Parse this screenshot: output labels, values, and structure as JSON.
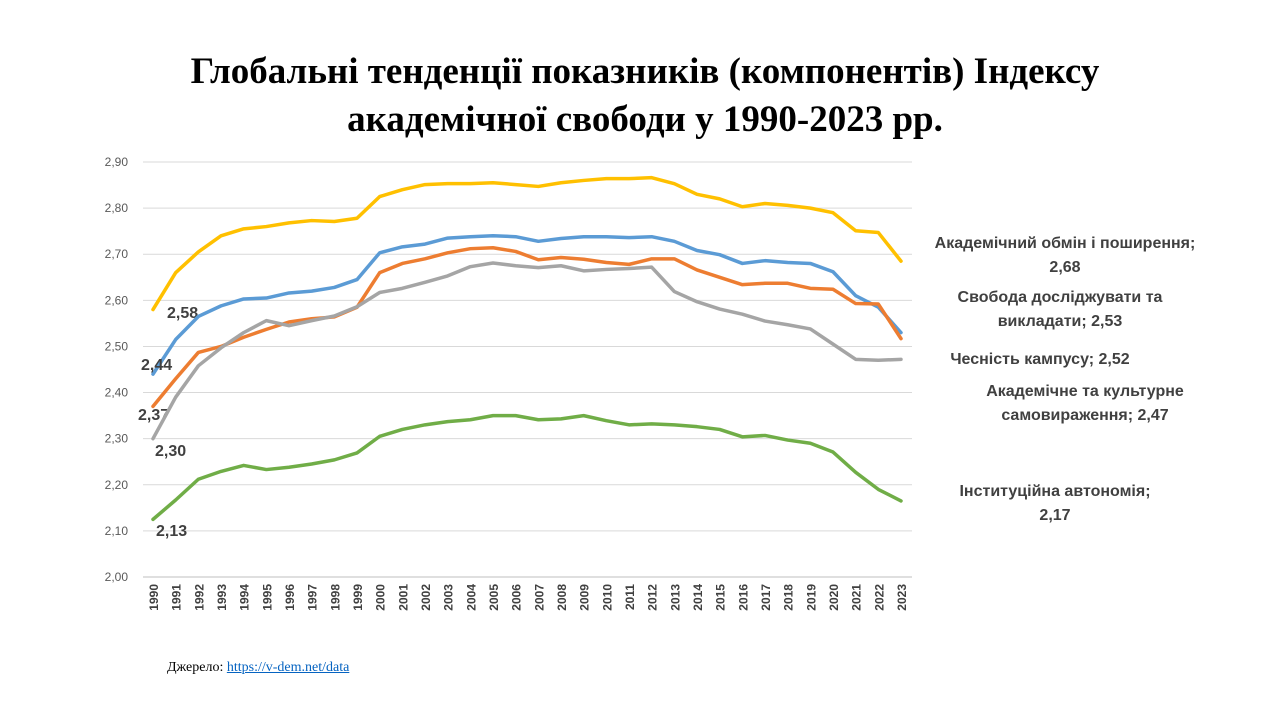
{
  "chart_data": {
    "type": "line",
    "title": "Глобальні тенденції показників (компонентів) Індексу академічної свободи  у 1990-2023 рр.",
    "title_lines": [
      "Глобальні тенденції показників (компонентів) Індексу",
      "академічної свободи  у 1990-2023 рр."
    ],
    "xlabel": "",
    "ylabel": "",
    "ylim": [
      2.0,
      2.9
    ],
    "yticks": [
      "2,00",
      "2,10",
      "2,20",
      "2,30",
      "2,40",
      "2,50",
      "2,60",
      "2,70",
      "2,80",
      "2,90"
    ],
    "grid": true,
    "x": [
      "1990",
      "1991",
      "1992",
      "1993",
      "1994",
      "1995",
      "1996",
      "1997",
      "1998",
      "1999",
      "2000",
      "2001",
      "2002",
      "2003",
      "2004",
      "2005",
      "2006",
      "2007",
      "2008",
      "2009",
      "2010",
      "2011",
      "2012",
      "2013",
      "2014",
      "2015",
      "2016",
      "2017",
      "2018",
      "2019",
      "2020",
      "2021",
      "2022",
      "2023"
    ],
    "series": [
      {
        "name": "Академічний обмін і поширення",
        "color": "#ffc000",
        "start_label": "2,58",
        "end_label": "Академічний обмін і поширення; 2,68",
        "values": [
          2.58,
          2.66,
          2.705,
          2.74,
          2.755,
          2.76,
          2.768,
          2.773,
          2.771,
          2.778,
          2.825,
          2.84,
          2.851,
          2.853,
          2.853,
          2.855,
          2.851,
          2.847,
          2.855,
          2.86,
          2.864,
          2.864,
          2.866,
          2.853,
          2.83,
          2.82,
          2.803,
          2.81,
          2.806,
          2.8,
          2.79,
          2.751,
          2.747,
          2.685
        ]
      },
      {
        "name": "Свобода досліджувати та викладати",
        "color": "#5b9bd5",
        "start_label": "2,44",
        "end_label": "Свобода досліджувати та викладати; 2,53",
        "values": [
          2.44,
          2.515,
          2.565,
          2.588,
          2.603,
          2.605,
          2.616,
          2.62,
          2.628,
          2.645,
          2.703,
          2.716,
          2.722,
          2.735,
          2.738,
          2.74,
          2.738,
          2.728,
          2.734,
          2.738,
          2.738,
          2.736,
          2.738,
          2.728,
          2.708,
          2.699,
          2.68,
          2.686,
          2.682,
          2.68,
          2.662,
          2.61,
          2.585,
          2.53
        ]
      },
      {
        "name": "Чесність кампусу",
        "color": "#ed7d31",
        "start_label": "2,37",
        "end_label": "Чесність кампусу; 2,52",
        "values": [
          2.37,
          2.43,
          2.487,
          2.5,
          2.52,
          2.537,
          2.553,
          2.56,
          2.564,
          2.585,
          2.66,
          2.68,
          2.69,
          2.703,
          2.712,
          2.714,
          2.706,
          2.688,
          2.693,
          2.689,
          2.682,
          2.678,
          2.69,
          2.69,
          2.666,
          2.65,
          2.634,
          2.637,
          2.637,
          2.626,
          2.624,
          2.593,
          2.592,
          2.517
        ]
      },
      {
        "name": "Академічне та культурне самовираження",
        "color": "#a5a5a5",
        "start_label": "2,30",
        "end_label": "Академічне та культурне самовираження; 2,47",
        "values": [
          2.3,
          2.39,
          2.458,
          2.497,
          2.53,
          2.556,
          2.545,
          2.556,
          2.566,
          2.586,
          2.617,
          2.626,
          2.639,
          2.653,
          2.673,
          2.681,
          2.675,
          2.671,
          2.675,
          2.664,
          2.667,
          2.669,
          2.672,
          2.619,
          2.597,
          2.581,
          2.57,
          2.555,
          2.547,
          2.538,
          2.505,
          2.472,
          2.47,
          2.472
        ]
      },
      {
        "name": "Інституційна автономія",
        "color": "#70ad47",
        "start_label": "2,13",
        "end_label": "Інституційна автономія; 2,17",
        "values": [
          2.125,
          2.167,
          2.212,
          2.229,
          2.242,
          2.233,
          2.238,
          2.245,
          2.254,
          2.269,
          2.305,
          2.32,
          2.33,
          2.337,
          2.341,
          2.35,
          2.35,
          2.341,
          2.343,
          2.35,
          2.339,
          2.33,
          2.332,
          2.33,
          2.326,
          2.32,
          2.304,
          2.307,
          2.297,
          2.29,
          2.271,
          2.227,
          2.19,
          2.165
        ]
      }
    ]
  },
  "right_labels": [
    [
      "Академічний обмін і поширення;",
      "2,68"
    ],
    [
      "Свобода досліджувати та",
      "викладати; 2,53"
    ],
    [
      "Чесність кампусу; 2,52"
    ],
    [
      "Академічне та культурне",
      "самовираження; 2,47"
    ],
    [
      "Інституційна автономія;",
      "2,17"
    ]
  ],
  "source": {
    "label": "Джерело: ",
    "link": "https://v-dem.net/data"
  }
}
